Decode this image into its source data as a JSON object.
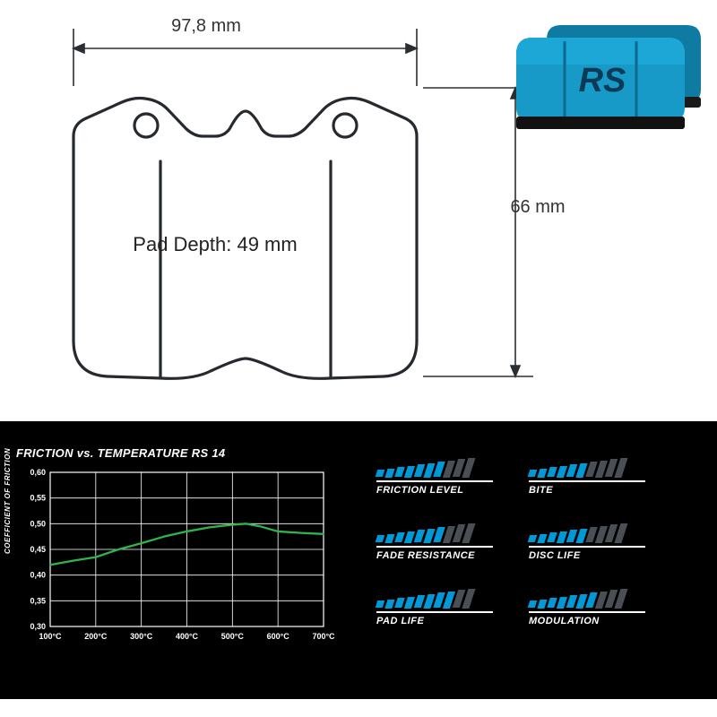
{
  "dimensions": {
    "width_label": "97,8 mm",
    "height_label": "66 mm",
    "depth_label": "Pad Depth: 49 mm"
  },
  "drawing": {
    "stroke": "#262a2e",
    "stroke_width": 3,
    "arrow_stroke": "#2a2e33"
  },
  "product_photo": {
    "body_color": "#189ac8",
    "back_color": "#0f7ba2",
    "logo_text": "RS",
    "logo_color": "#0a3a55"
  },
  "chart": {
    "title": "FRICTION vs. TEMPERATURE RS 14",
    "y_axis_label": "COEFFICIENT OF FRICTION",
    "x_ticks": [
      "100°C",
      "200°C",
      "300°C",
      "400°C",
      "500°C",
      "600°C",
      "700°C"
    ],
    "y_ticks": [
      "0,30",
      "0,35",
      "0,40",
      "0,45",
      "0,50",
      "0,55",
      "0,60"
    ],
    "y_min": 0.3,
    "y_max": 0.6,
    "x_min": 100,
    "x_max": 700,
    "grid_color": "#ffffff",
    "line_color": "#2fb54b",
    "line_width": 2.3,
    "series": [
      {
        "x": 100,
        "y": 0.42
      },
      {
        "x": 150,
        "y": 0.428
      },
      {
        "x": 200,
        "y": 0.435
      },
      {
        "x": 250,
        "y": 0.45
      },
      {
        "x": 300,
        "y": 0.462
      },
      {
        "x": 350,
        "y": 0.475
      },
      {
        "x": 400,
        "y": 0.485
      },
      {
        "x": 450,
        "y": 0.493
      },
      {
        "x": 500,
        "y": 0.498
      },
      {
        "x": 530,
        "y": 0.5
      },
      {
        "x": 560,
        "y": 0.495
      },
      {
        "x": 600,
        "y": 0.485
      },
      {
        "x": 650,
        "y": 0.482
      },
      {
        "x": 700,
        "y": 0.48
      }
    ]
  },
  "ratings": {
    "max_bars": 10,
    "active_color": "#0099d8",
    "inactive_color": "#4a4f55",
    "items": [
      {
        "label": "FRICTION LEVEL",
        "value": 7
      },
      {
        "label": "BITE",
        "value": 6
      },
      {
        "label": "FADE RESISTANCE",
        "value": 7
      },
      {
        "label": "DISC LIFE",
        "value": 6
      },
      {
        "label": "PAD LIFE",
        "value": 8
      },
      {
        "label": "MODULATION",
        "value": 7
      }
    ]
  }
}
